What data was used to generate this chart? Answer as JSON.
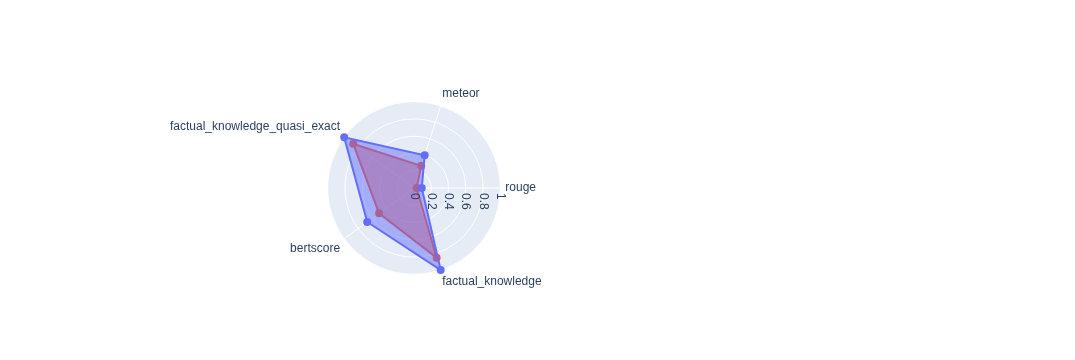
{
  "chart_data": {
    "type": "radar",
    "categories": [
      "meteor",
      "rouge",
      "factual_knowledge",
      "bertscore",
      "factual_knowledge_quasi_exact"
    ],
    "series": [
      {
        "color": "#636efa",
        "values": [
          0.4,
          0.09,
          1.0,
          0.67,
          1.0
        ]
      },
      {
        "color": "#ef553b",
        "values": [
          0.27,
          0.03,
          0.85,
          0.5,
          0.87
        ]
      }
    ],
    "ylim": [
      0,
      1
    ],
    "yticks": [
      0,
      0.2,
      0.4,
      0.6,
      0.8,
      1
    ],
    "grid": true,
    "marker": "circle"
  }
}
